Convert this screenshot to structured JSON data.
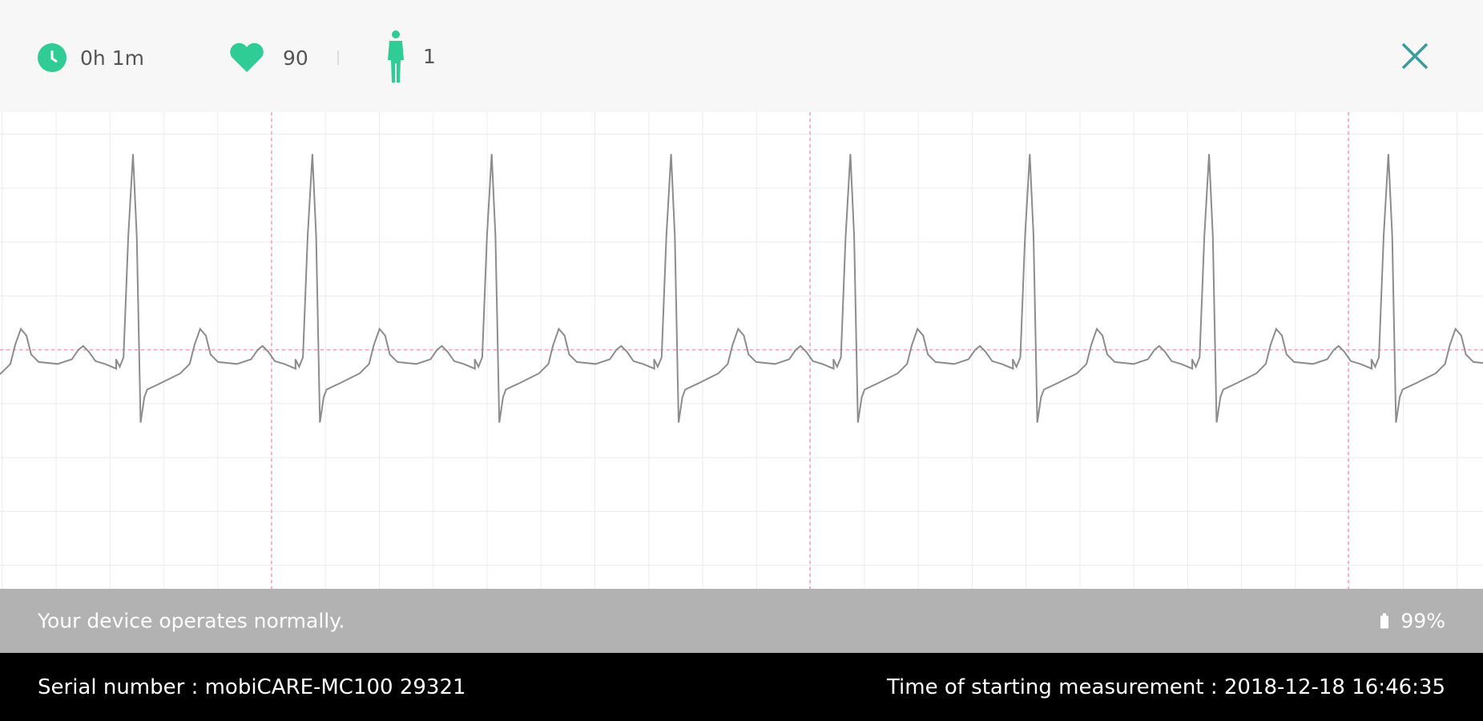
{
  "header": {
    "duration": "0h 1m",
    "heart_rate": "90",
    "person_count": "1"
  },
  "status": {
    "message": "Your device operates normally.",
    "battery": "99%"
  },
  "footer": {
    "serial": "Serial number : mobiCARE-MC100 29321",
    "start_time": "Time of starting measurement : 2018-12-18 16:46:35"
  }
}
